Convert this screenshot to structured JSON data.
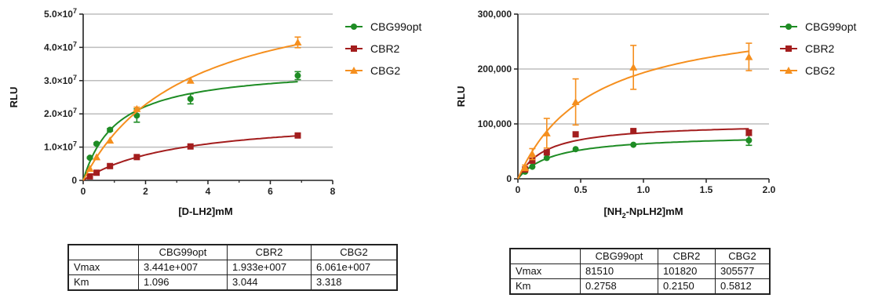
{
  "chart_data": [
    {
      "type": "scatter",
      "title": "",
      "xlabel": "[D-LH2]mM",
      "ylabel": "RLU",
      "xlim": [
        0,
        8
      ],
      "ylim": [
        0,
        50000000
      ],
      "grid": "horizontal",
      "legend_position": "right",
      "x_ticks": [
        "0",
        "2",
        "4",
        "6",
        "8"
      ],
      "y_ticks": [
        {
          "mantissa": "0",
          "exp": ""
        },
        {
          "mantissa": "1.0×10",
          "exp": "7"
        },
        {
          "mantissa": "2.0×10",
          "exp": "7"
        },
        {
          "mantissa": "3.0×10",
          "exp": "7"
        },
        {
          "mantissa": "4.0×10",
          "exp": "7"
        },
        {
          "mantissa": "5.0×10",
          "exp": "7"
        }
      ],
      "series": [
        {
          "name": "CBG99opt",
          "color": "#1e8c24",
          "marker": "circle",
          "x": [
            0.215,
            0.43,
            0.86,
            1.72,
            3.44,
            6.88
          ],
          "y": [
            6800000,
            11000000,
            15200000,
            19500000,
            24500000,
            31500000
          ],
          "err": [
            200000,
            300000,
            400000,
            2000000,
            1500000,
            1200000
          ],
          "fit": {
            "vmax": 34410000,
            "km": 1.096
          }
        },
        {
          "name": "CBR2",
          "color": "#a31d1d",
          "marker": "square",
          "x": [
            0.215,
            0.43,
            0.86,
            1.72,
            3.44,
            6.88
          ],
          "y": [
            1200000,
            2300000,
            4300000,
            7000000,
            10200000,
            13500000
          ],
          "err": [
            0,
            0,
            0,
            0,
            0,
            0
          ],
          "fit": {
            "vmax": 19330000,
            "km": 3.044
          }
        },
        {
          "name": "CBG2",
          "color": "#f58f1e",
          "marker": "triangle",
          "x": [
            0.215,
            0.43,
            0.86,
            1.72,
            3.44,
            6.88
          ],
          "y": [
            3500000,
            7000000,
            12000000,
            21500000,
            30000000,
            41500000
          ],
          "err": [
            0,
            0,
            0,
            500000,
            0,
            1600000
          ],
          "fit": {
            "vmax": 60610000,
            "km": 3.318
          }
        }
      ]
    },
    {
      "type": "scatter",
      "title": "",
      "xlabel": "[NH2-NpLH2]mM",
      "ylabel": "RLU",
      "xlim": [
        0,
        2.0
      ],
      "ylim": [
        0,
        300000
      ],
      "grid": "horizontal",
      "legend_position": "right",
      "x_ticks": [
        "0",
        "0.5",
        "1.0",
        "1.5",
        "2.0"
      ],
      "y_ticks": [
        "0",
        "100,000",
        "200,000",
        "300,000"
      ],
      "series": [
        {
          "name": "CBG99opt",
          "color": "#1e8c24",
          "marker": "circle",
          "x": [
            0.0575,
            0.115,
            0.23,
            0.46,
            0.92,
            1.84
          ],
          "y": [
            13000,
            22000,
            38000,
            54000,
            62000,
            70000
          ],
          "err": [
            0,
            0,
            0,
            0,
            0,
            9000
          ],
          "fit": {
            "vmax": 81510,
            "km": 0.2758
          }
        },
        {
          "name": "CBR2",
          "color": "#a31d1d",
          "marker": "square",
          "x": [
            0.0575,
            0.115,
            0.23,
            0.46,
            0.92,
            1.84
          ],
          "y": [
            17000,
            33000,
            48000,
            81000,
            87000,
            84000
          ],
          "err": [
            0,
            0,
            0,
            0,
            0,
            5000
          ],
          "fit": {
            "vmax": 101820,
            "km": 0.215
          }
        },
        {
          "name": "CBG2",
          "color": "#f58f1e",
          "marker": "triangle",
          "x": [
            0.0575,
            0.115,
            0.23,
            0.46,
            0.92,
            1.84
          ],
          "y": [
            20000,
            45000,
            83000,
            140000,
            203000,
            222000
          ],
          "err": [
            5000,
            10000,
            27000,
            42000,
            40000,
            25000
          ],
          "fit": {
            "vmax": 305577,
            "km": 0.5812
          }
        }
      ]
    }
  ],
  "tables": {
    "left": {
      "header": [
        "",
        "CBG99opt",
        "CBR2",
        "CBG2"
      ],
      "rows": [
        [
          "Vmax",
          "3.441e+007",
          "1.933e+007",
          "6.061e+007"
        ],
        [
          "Km",
          "1.096",
          "3.044",
          "3.318"
        ]
      ]
    },
    "right": {
      "header": [
        "",
        "CBG99opt",
        "CBR2",
        "CBG2"
      ],
      "rows": [
        [
          "Vmax",
          "81510",
          "101820",
          "305577"
        ],
        [
          "Km",
          "0.2758",
          "0.2150",
          "0.5812"
        ]
      ]
    }
  }
}
